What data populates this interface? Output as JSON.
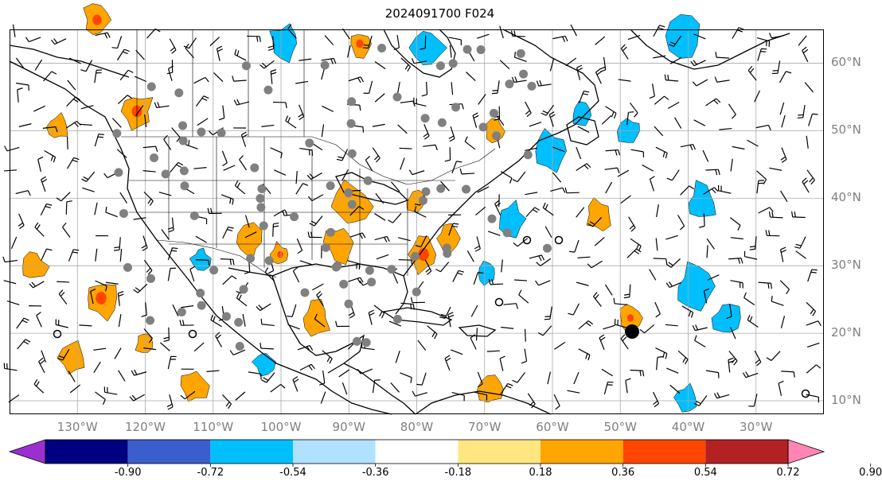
{
  "title": "2024091700 F024",
  "lat_labels": [
    {
      "lat": 60,
      "text": "60°N"
    },
    {
      "lat": 50,
      "text": "50°N"
    },
    {
      "lat": 40,
      "text": "40°N"
    },
    {
      "lat": 30,
      "text": "30°N"
    },
    {
      "lat": 20,
      "text": "20°N"
    },
    {
      "lat": 10,
      "text": "10°N"
    }
  ],
  "lon_labels": [
    {
      "lon": -130,
      "text": "130°W"
    },
    {
      "lon": -120,
      "text": "120°W"
    },
    {
      "lon": -110,
      "text": "110°W"
    },
    {
      "lon": -100,
      "text": "100°W"
    },
    {
      "lon": -90,
      "text": "90°W"
    },
    {
      "lon": -80,
      "text": "80°W"
    },
    {
      "lon": -70,
      "text": "70°W"
    },
    {
      "lon": -60,
      "text": "60°W"
    },
    {
      "lon": -50,
      "text": "50°W"
    },
    {
      "lon": -40,
      "text": "40°W"
    },
    {
      "lon": -30,
      "text": "30°W"
    }
  ],
  "map_extent": {
    "lon_min": -140,
    "lon_max": -20,
    "lat_min": 8,
    "lat_max": 65
  },
  "colorbar": {
    "ticks": [
      "-0.90",
      "-0.72",
      "-0.54",
      "-0.36",
      "-0.18",
      "0.18",
      "0.36",
      "0.54",
      "0.72",
      "0.90"
    ],
    "colors": [
      "#9b30d0",
      "#000080",
      "#3a5fcd",
      "#00bfff",
      "#b0e2ff",
      "#ffffff",
      "#ffe680",
      "#ffa500",
      "#ff4500",
      "#b22222",
      "#ff85b4"
    ],
    "extend": "both"
  },
  "colors": {
    "grid": "#a9a9a9",
    "coast": "#000000",
    "dot": "#808080"
  }
}
